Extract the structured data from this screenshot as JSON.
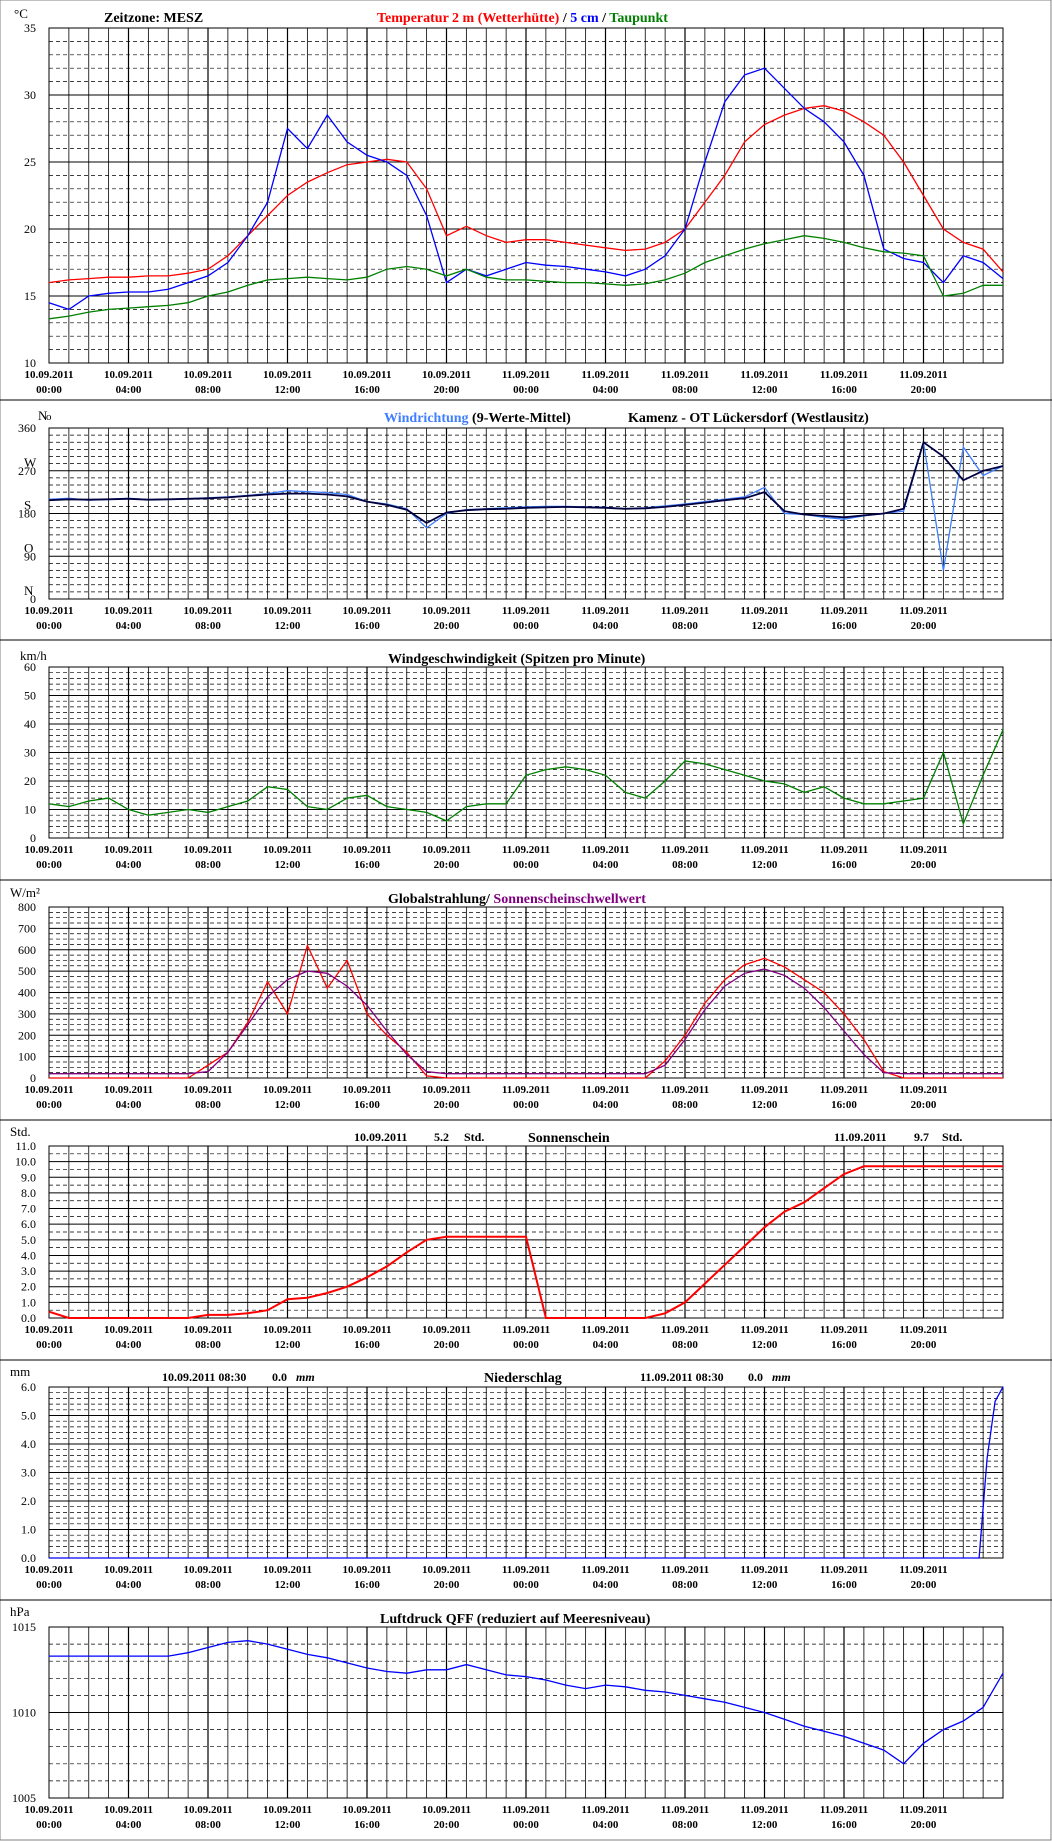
{
  "colors": {
    "grid": "#000000",
    "red": "#ff0000",
    "blue": "#0000ff",
    "green": "#008000",
    "lightblue": "#3f7fff",
    "navy": "#000040",
    "purple": "#800080"
  },
  "time_axis": {
    "start": "10.09.2011 00:00",
    "hours": 48,
    "tick_every_hours": 4,
    "tick_dates": [
      "10.09.2011",
      "10.09.2011",
      "10.09.2011",
      "10.09.2011",
      "10.09.2011",
      "10.09.2011",
      "11.09.2011",
      "11.09.2011",
      "11.09.2011",
      "11.09.2011",
      "11.09.2011",
      "11.09.2011"
    ],
    "tick_times": [
      "00:00",
      "04:00",
      "08:00",
      "12:00",
      "16:00",
      "20:00",
      "00:00",
      "04:00",
      "08:00",
      "12:00",
      "16:00",
      "20:00"
    ]
  },
  "panels": {
    "temperature": {
      "unit": "°C",
      "zone_label": "Zeitzone: MESZ",
      "title_red": "Temperatur 2 m (Wetterhütte)",
      "title_sep": " / ",
      "title_blue": "5 cm",
      "title_sep2": " / ",
      "title_green": "Taupunkt",
      "yticks": [
        "35",
        "30",
        "25",
        "20",
        "15",
        "10"
      ]
    },
    "wind_direction": {
      "unit": "N",
      "title_blue": "Windrichtung",
      "title_black": " (9-Werte-Mittel)",
      "station": "Kamenz - OT Lückersdorf (Westlausitz)",
      "yticks": [
        "360",
        "270",
        "180",
        "90",
        "0"
      ],
      "compass": [
        "N",
        "W",
        "S",
        "O",
        "N"
      ]
    },
    "wind_speed": {
      "unit": "km/h",
      "title": "Windgeschwindigkeit (Spitzen pro Minute)",
      "yticks": [
        "60",
        "50",
        "40",
        "30",
        "20",
        "10",
        "0"
      ]
    },
    "radiation": {
      "unit": "W/m²",
      "title_red": "Globalstrahlung/",
      "title_purple": " Sonnenscheinschwellwert",
      "yticks": [
        "800",
        "700",
        "600",
        "500",
        "400",
        "300",
        "200",
        "100",
        "0"
      ]
    },
    "sunshine": {
      "unit": "Std.",
      "title": "Sonnenschein",
      "day1_date": "10.09.2011",
      "day1_value": "5.2",
      "day1_unit": "Std.",
      "day2_date": "11.09.2011",
      "day2_value": "9.7",
      "day2_unit": "Std.",
      "yticks": [
        "11.0",
        "10.0",
        "9.0",
        "8.0",
        "7.0",
        "6.0",
        "5.0",
        "4.0",
        "3.0",
        "2.0",
        "1.0",
        "0.0"
      ]
    },
    "precipitation": {
      "unit": "mm",
      "title": "Niederschlag",
      "day1_date": "10.09.2011 08:30",
      "day1_value": "0.0",
      "day1_unit": "mm",
      "day2_date": "11.09.2011 08:30",
      "day2_value": "0.0",
      "day2_unit": "mm",
      "yticks": [
        "6.0",
        "5.0",
        "4.0",
        "3.0",
        "2.0",
        "1.0",
        "0.0"
      ]
    },
    "pressure": {
      "unit": "hPa",
      "title": "Luftdruck QFF (reduziert auf Meeresniveau)",
      "yticks": [
        "1015",
        "1010",
        "1005"
      ]
    }
  },
  "chart_data": [
    {
      "type": "line",
      "xlabel": "",
      "ylabel": "°C",
      "ylim": [
        10,
        35
      ],
      "x_hours": [
        0,
        1,
        2,
        3,
        4,
        5,
        6,
        7,
        8,
        9,
        10,
        11,
        12,
        13,
        14,
        15,
        16,
        17,
        18,
        19,
        20,
        21,
        22,
        23,
        24,
        25,
        26,
        27,
        28,
        29,
        30,
        31,
        32,
        33,
        34,
        35,
        36,
        37,
        38,
        39,
        40,
        41,
        42,
        43,
        44,
        45,
        46,
        47,
        48
      ],
      "series": [
        {
          "name": "Temperatur 2 m (Wetterhütte)",
          "color": "red",
          "values": [
            16.0,
            16.2,
            16.3,
            16.4,
            16.4,
            16.5,
            16.5,
            16.7,
            17.0,
            18.0,
            19.5,
            21.0,
            22.5,
            23.5,
            24.2,
            24.8,
            25.0,
            25.2,
            25.0,
            23.0,
            19.5,
            20.2,
            19.5,
            19.0,
            19.2,
            19.2,
            19.0,
            18.8,
            18.6,
            18.4,
            18.5,
            19.0,
            20.0,
            22.0,
            24.0,
            26.5,
            27.8,
            28.5,
            29.0,
            29.2,
            28.8,
            28.0,
            27.0,
            25.0,
            22.5,
            20.0,
            19.0,
            18.5,
            16.8
          ]
        },
        {
          "name": "5 cm",
          "color": "blue",
          "values": [
            14.5,
            14.0,
            15.0,
            15.2,
            15.3,
            15.3,
            15.5,
            16.0,
            16.5,
            17.5,
            19.5,
            22.0,
            27.5,
            26.0,
            28.5,
            26.5,
            25.5,
            25.0,
            24.0,
            21.0,
            16.0,
            17.0,
            16.5,
            17.0,
            17.5,
            17.3,
            17.2,
            17.0,
            16.8,
            16.5,
            17.0,
            18.0,
            20.0,
            25.0,
            29.5,
            31.5,
            32.0,
            30.5,
            29.0,
            28.0,
            26.5,
            24.0,
            18.5,
            17.8,
            17.5,
            16.0,
            18.0,
            17.5,
            16.3
          ]
        },
        {
          "name": "Taupunkt",
          "color": "green",
          "values": [
            13.3,
            13.5,
            13.8,
            14.0,
            14.1,
            14.2,
            14.3,
            14.5,
            15.0,
            15.3,
            15.8,
            16.2,
            16.3,
            16.4,
            16.3,
            16.2,
            16.4,
            17.0,
            17.2,
            17.0,
            16.5,
            17.0,
            16.4,
            16.2,
            16.2,
            16.1,
            16.0,
            16.0,
            15.9,
            15.8,
            15.9,
            16.2,
            16.7,
            17.5,
            18.0,
            18.5,
            18.9,
            19.2,
            19.5,
            19.3,
            19.0,
            18.6,
            18.3,
            18.2,
            18.0,
            15.0,
            15.2,
            15.8,
            15.8
          ]
        }
      ]
    },
    {
      "type": "line",
      "xlabel": "",
      "ylabel": "",
      "ylim": [
        0,
        360
      ],
      "x_hours": [
        0,
        1,
        2,
        3,
        4,
        5,
        6,
        7,
        8,
        9,
        10,
        11,
        12,
        13,
        14,
        15,
        16,
        17,
        18,
        19,
        20,
        21,
        22,
        23,
        24,
        25,
        26,
        27,
        28,
        29,
        30,
        31,
        32,
        33,
        34,
        35,
        36,
        37,
        38,
        39,
        40,
        41,
        42,
        43,
        44,
        45,
        46,
        47,
        48
      ],
      "series": [
        {
          "name": "Windrichtung",
          "color": "lightblue",
          "values": [
            210,
            212,
            208,
            210,
            212,
            209,
            210,
            211,
            213,
            215,
            218,
            222,
            228,
            226,
            224,
            220,
            205,
            200,
            190,
            150,
            180,
            188,
            190,
            192,
            194,
            195,
            195,
            194,
            193,
            190,
            192,
            196,
            200,
            205,
            210,
            215,
            235,
            180,
            178,
            172,
            168,
            175,
            180,
            185,
            330,
            60,
            320,
            260,
            280
          ]
        },
        {
          "name": "9-Werte-Mittel",
          "color": "navy",
          "values": [
            208,
            210,
            209,
            210,
            211,
            209,
            210,
            211,
            212,
            214,
            217,
            220,
            222,
            222,
            220,
            216,
            205,
            198,
            188,
            160,
            182,
            187,
            189,
            190,
            192,
            193,
            194,
            193,
            192,
            190,
            191,
            194,
            198,
            203,
            208,
            212,
            225,
            185,
            178,
            175,
            172,
            176,
            180,
            190,
            330,
            300,
            250,
            270,
            280
          ]
        }
      ]
    },
    {
      "type": "line",
      "xlabel": "",
      "ylabel": "km/h",
      "ylim": [
        0,
        60
      ],
      "x_hours": [
        0,
        1,
        2,
        3,
        4,
        5,
        6,
        7,
        8,
        9,
        10,
        11,
        12,
        13,
        14,
        15,
        16,
        17,
        18,
        19,
        20,
        21,
        22,
        23,
        24,
        25,
        26,
        27,
        28,
        29,
        30,
        31,
        32,
        33,
        34,
        35,
        36,
        37,
        38,
        39,
        40,
        41,
        42,
        43,
        44,
        45,
        46,
        47,
        48
      ],
      "series": [
        {
          "name": "Windgeschwindigkeit",
          "color": "green",
          "values": [
            12,
            11,
            13,
            14,
            10,
            8,
            9,
            10,
            9,
            11,
            13,
            18,
            17,
            11,
            10,
            14,
            15,
            11,
            10,
            9,
            6,
            11,
            12,
            12,
            22,
            24,
            25,
            24,
            22,
            16,
            14,
            20,
            27,
            26,
            24,
            22,
            20,
            19,
            16,
            18,
            14,
            12,
            12,
            13,
            14,
            30,
            5,
            22,
            38
          ]
        }
      ]
    },
    {
      "type": "line",
      "xlabel": "",
      "ylabel": "W/m²",
      "ylim": [
        0,
        800
      ],
      "x_hours": [
        0,
        1,
        2,
        3,
        4,
        5,
        6,
        7,
        8,
        9,
        10,
        11,
        12,
        13,
        14,
        15,
        16,
        17,
        18,
        19,
        20,
        21,
        22,
        23,
        24,
        25,
        26,
        27,
        28,
        29,
        30,
        31,
        32,
        33,
        34,
        35,
        36,
        37,
        38,
        39,
        40,
        41,
        42,
        43,
        44,
        45,
        46,
        47,
        48
      ],
      "series": [
        {
          "name": "Globalstrahlung",
          "color": "red",
          "values": [
            0,
            0,
            0,
            0,
            0,
            0,
            0,
            0,
            60,
            120,
            260,
            450,
            300,
            620,
            420,
            550,
            300,
            200,
            120,
            10,
            0,
            0,
            0,
            0,
            0,
            0,
            0,
            0,
            0,
            0,
            0,
            80,
            200,
            350,
            460,
            530,
            560,
            520,
            460,
            400,
            300,
            180,
            30,
            0,
            0,
            0,
            0,
            0,
            0
          ]
        },
        {
          "name": "Sonnenscheinschwellwert",
          "color": "purple",
          "values": [
            20,
            20,
            20,
            20,
            20,
            20,
            20,
            20,
            30,
            120,
            250,
            380,
            460,
            500,
            490,
            430,
            340,
            220,
            110,
            30,
            20,
            20,
            20,
            20,
            20,
            20,
            20,
            20,
            20,
            20,
            20,
            60,
            180,
            320,
            430,
            490,
            510,
            480,
            420,
            330,
            220,
            110,
            25,
            20,
            20,
            20,
            20,
            20,
            20
          ]
        }
      ]
    },
    {
      "type": "line",
      "xlabel": "",
      "ylabel": "Std.",
      "ylim": [
        0,
        11
      ],
      "x_hours": [
        0,
        1,
        2,
        3,
        4,
        5,
        6,
        7,
        8,
        9,
        10,
        11,
        12,
        13,
        14,
        15,
        16,
        17,
        18,
        19,
        20,
        21,
        22,
        23,
        24,
        25,
        26,
        27,
        28,
        29,
        30,
        31,
        32,
        33,
        34,
        35,
        36,
        37,
        38,
        39,
        40,
        41,
        42,
        43,
        44,
        45,
        46,
        47,
        48
      ],
      "series": [
        {
          "name": "Sonnenschein",
          "color": "red",
          "values": [
            0.4,
            0,
            0,
            0,
            0,
            0,
            0,
            0,
            0.2,
            0.2,
            0.3,
            0.5,
            1.2,
            1.3,
            1.6,
            2.0,
            2.6,
            3.3,
            4.2,
            5.0,
            5.2,
            5.2,
            5.2,
            5.2,
            5.2,
            0,
            0,
            0,
            0,
            0,
            0,
            0.3,
            1.0,
            2.2,
            3.4,
            4.6,
            5.8,
            6.8,
            7.4,
            8.3,
            9.2,
            9.7,
            9.7,
            9.7,
            9.7,
            9.7,
            9.7,
            9.7,
            9.7
          ]
        }
      ]
    },
    {
      "type": "line",
      "xlabel": "",
      "ylabel": "mm",
      "ylim": [
        0,
        6
      ],
      "x_hours": [
        0,
        6,
        12,
        18,
        24,
        30,
        36,
        42,
        46.8,
        47.2,
        47.6,
        48
      ],
      "series": [
        {
          "name": "Niederschlag",
          "color": "blue",
          "values": [
            0,
            0,
            0,
            0,
            0,
            0,
            0,
            0,
            0,
            3.5,
            5.5,
            6.0
          ]
        }
      ]
    },
    {
      "type": "line",
      "xlabel": "",
      "ylabel": "hPa",
      "ylim": [
        1005,
        1015
      ],
      "x_hours": [
        0,
        1,
        2,
        3,
        4,
        5,
        6,
        7,
        8,
        9,
        10,
        11,
        12,
        13,
        14,
        15,
        16,
        17,
        18,
        19,
        20,
        21,
        22,
        23,
        24,
        25,
        26,
        27,
        28,
        29,
        30,
        31,
        32,
        33,
        34,
        35,
        36,
        37,
        38,
        39,
        40,
        41,
        42,
        43,
        44,
        45,
        46,
        47,
        48
      ],
      "series": [
        {
          "name": "Luftdruck QFF",
          "color": "blue",
          "values": [
            1013.3,
            1013.3,
            1013.3,
            1013.3,
            1013.3,
            1013.3,
            1013.3,
            1013.5,
            1013.8,
            1014.1,
            1014.2,
            1014.0,
            1013.7,
            1013.4,
            1013.2,
            1012.9,
            1012.6,
            1012.4,
            1012.3,
            1012.5,
            1012.5,
            1012.8,
            1012.5,
            1012.2,
            1012.1,
            1011.9,
            1011.6,
            1011.4,
            1011.6,
            1011.5,
            1011.3,
            1011.2,
            1011.0,
            1010.8,
            1010.6,
            1010.3,
            1010.0,
            1009.6,
            1009.2,
            1008.9,
            1008.6,
            1008.2,
            1007.8,
            1007.0,
            1008.2,
            1009.0,
            1009.5,
            1010.3,
            1012.3
          ]
        }
      ]
    }
  ]
}
